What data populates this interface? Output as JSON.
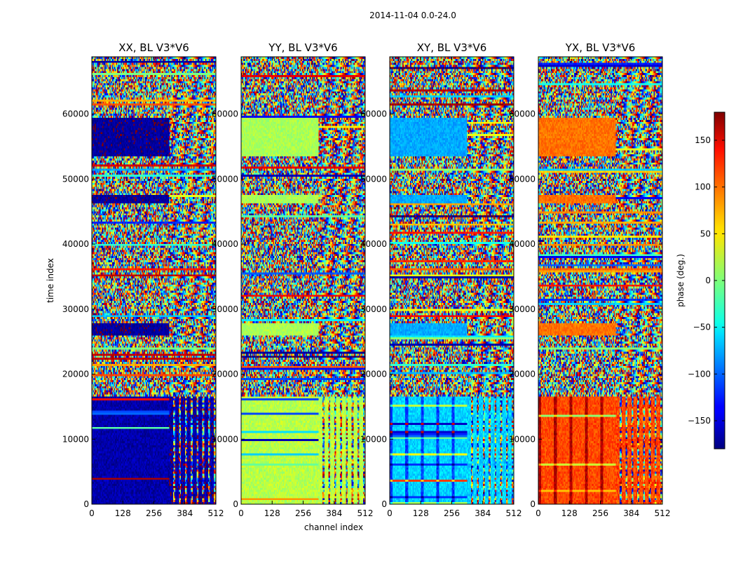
{
  "chart_data": {
    "type": "heatmap",
    "suptitle": "2014-11-04 0.0-24.0",
    "xlabel": "channel index",
    "ylabel": "time index",
    "xlim": [
      0,
      512
    ],
    "ylim": [
      0,
      68800
    ],
    "x_ticks": [
      0,
      128,
      256,
      384,
      512
    ],
    "y_ticks": [
      0,
      10000,
      20000,
      30000,
      40000,
      50000,
      60000
    ],
    "y_tick_labels": [
      "0",
      "10000",
      "20000",
      "30000",
      "40000",
      "50000",
      "60000"
    ],
    "colormap": "jet",
    "colorbar": {
      "label": "phase (deg.)",
      "range": [
        -180,
        180
      ],
      "ticks": [
        -150,
        -100,
        -50,
        0,
        50,
        100,
        150
      ],
      "tick_labels": [
        "−150",
        "−100",
        "−50",
        "0",
        "50",
        "100",
        "150"
      ]
    },
    "time_segments": [
      {
        "start": 0,
        "end": 16500,
        "regime": "coherent"
      },
      {
        "start": 16500,
        "end": 68800,
        "regime": "noisy"
      }
    ],
    "flag_bands": [
      {
        "start": 53500,
        "end": 59500
      },
      {
        "start": 46300,
        "end": 47600
      },
      {
        "start": 26000,
        "end": 27800
      }
    ],
    "panels": [
      {
        "title": "XX, BL V3*V6",
        "low_time_phase": -165,
        "flag_phase": -170,
        "left_channel_cutoff": 320
      },
      {
        "title": "YY, BL V3*V6",
        "low_time_phase": 20,
        "flag_phase": 15,
        "left_channel_cutoff": 320
      },
      {
        "title": "XY, BL V3*V6",
        "low_time_phase": -60,
        "flag_phase": -75,
        "left_channel_cutoff": 320
      },
      {
        "title": "YX, BL V3*V6",
        "low_time_phase": 110,
        "flag_phase": 95,
        "left_channel_cutoff": 320
      }
    ]
  }
}
